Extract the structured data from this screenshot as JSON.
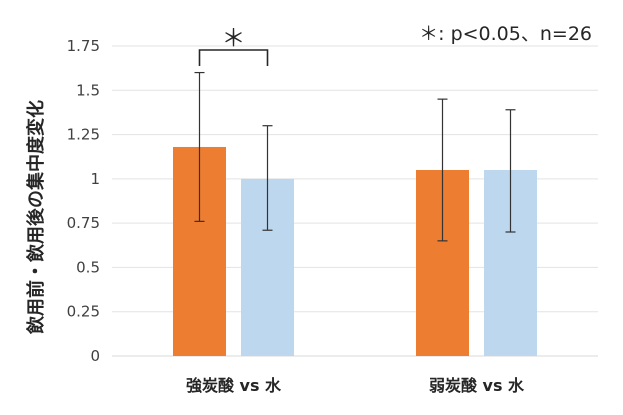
{
  "chart_data": {
    "type": "bar",
    "categories": [
      "強炭酸 vs 水",
      "弱炭酸 vs 水"
    ],
    "series": [
      {
        "color": "#ED7D31",
        "values": [
          1.18,
          1.05
        ],
        "error_low": [
          0.76,
          0.65
        ],
        "error_high": [
          1.6,
          1.45
        ]
      },
      {
        "color": "#BDD7EE",
        "values": [
          1.0,
          1.05
        ],
        "error_low": [
          0.71,
          0.7
        ],
        "error_high": [
          1.3,
          1.39
        ]
      }
    ],
    "ylabel": "飲用前・飲用後の集中度変化",
    "ylim": [
      0,
      1.75
    ],
    "yticks": [
      0,
      0.25,
      0.5,
      0.75,
      1,
      1.25,
      1.5,
      1.75
    ],
    "ytick_labels": [
      "0",
      "0.25",
      "0.5",
      "0.75",
      "1",
      "1.25",
      "1.5",
      "1.75"
    ],
    "grid": true,
    "annotation": "＊: p<0.05、n=26",
    "significance": {
      "category_index": 0,
      "marker": "＊"
    }
  }
}
